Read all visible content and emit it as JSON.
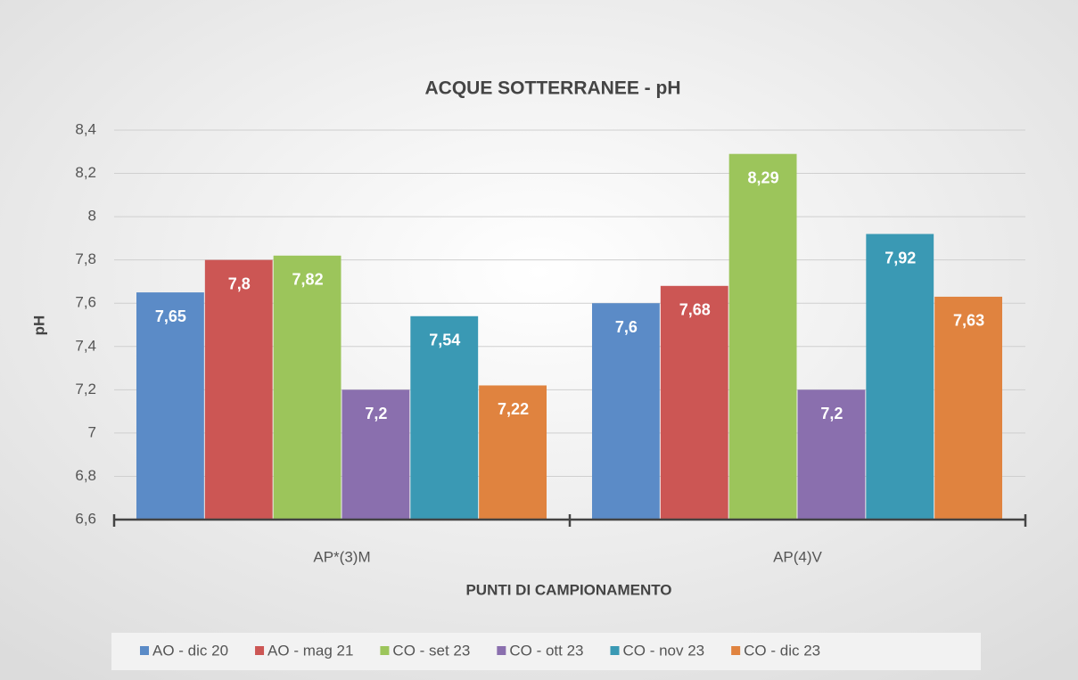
{
  "chart_data": {
    "type": "bar",
    "title": "ACQUE SOTTERRANEE - pH",
    "x_label": "PUNTI DI CAMPIONAMENTO",
    "y_label": "pH",
    "categories": [
      "AP*(3)M",
      "AP(4)V"
    ],
    "series": [
      {
        "name": "AO - dic 20",
        "color": "#5b8bc7",
        "values": [
          7.65,
          7.6
        ],
        "value_labels": [
          "7,65",
          "7,6"
        ]
      },
      {
        "name": "AO - mag 21",
        "color": "#cc5654",
        "values": [
          7.8,
          7.68
        ],
        "value_labels": [
          "7,8",
          "7,68"
        ]
      },
      {
        "name": "CO - set 23",
        "color": "#9cc55b",
        "values": [
          7.82,
          8.29
        ],
        "value_labels": [
          "7,82",
          "8,29"
        ]
      },
      {
        "name": "CO - ott 23",
        "color": "#8a6fae",
        "values": [
          7.2,
          7.2
        ],
        "value_labels": [
          "7,2",
          "7,2"
        ]
      },
      {
        "name": "CO - nov 23",
        "color": "#3a99b4",
        "values": [
          7.54,
          7.92
        ],
        "value_labels": [
          "7,54",
          "7,92"
        ]
      },
      {
        "name": "CO - dic 23",
        "color": "#e0833f",
        "values": [
          7.22,
          7.63
        ],
        "value_labels": [
          "7,22",
          "7,63"
        ]
      }
    ],
    "ylim": [
      6.6,
      8.4
    ],
    "yticks": [
      {
        "value": 6.6,
        "label": "6,6"
      },
      {
        "value": 6.8,
        "label": "6,8"
      },
      7,
      {
        "value": 7.2,
        "label": "7,2"
      },
      {
        "value": 7.4,
        "label": "7,4"
      },
      {
        "value": 7.6,
        "label": "7,6"
      },
      {
        "value": 7.8,
        "label": "7,8"
      },
      8,
      {
        "value": 8.2,
        "label": "8,2"
      },
      {
        "value": 8.4,
        "label": "8,4"
      }
    ],
    "grid": true,
    "legend": "bottom"
  }
}
